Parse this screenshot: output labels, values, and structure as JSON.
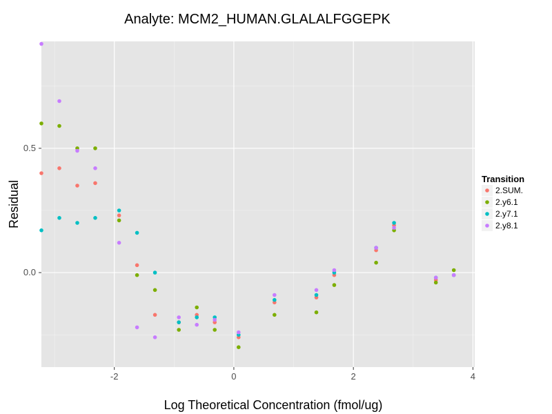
{
  "chart_data": {
    "type": "scatter",
    "title": "Analyte: MCM2_HUMAN.GLALALFGGEPK",
    "xlabel": "Log Theoretical Concentration (fmol/ug)",
    "ylabel": "Residual",
    "xlim": [
      -3.22,
      4.03
    ],
    "ylim": [
      -0.38,
      0.93
    ],
    "xticks": [
      -2,
      0,
      2,
      4
    ],
    "yticks": [
      0.0,
      0.5
    ],
    "xtick_labels": [
      "-2",
      "0",
      "2",
      "4"
    ],
    "ytick_labels": [
      "0.0",
      "0.5"
    ],
    "grid": true,
    "legend": {
      "title": "Transition",
      "position": "right",
      "entries": [
        "2.SUM.",
        "2.y6.1",
        "2.y7.1",
        "2.y8.1"
      ]
    },
    "series": [
      {
        "name": "2.SUM.",
        "color": "#F8766D",
        "points": [
          [
            -3.22,
            0.4
          ],
          [
            -2.92,
            0.42
          ],
          [
            -2.62,
            0.35
          ],
          [
            -2.32,
            0.36
          ],
          [
            -1.92,
            0.23
          ],
          [
            -1.62,
            0.03
          ],
          [
            -1.32,
            -0.17
          ],
          [
            -0.92,
            -0.2
          ],
          [
            -0.62,
            -0.17
          ],
          [
            -0.32,
            -0.2
          ],
          [
            0.08,
            -0.26
          ],
          [
            0.68,
            -0.12
          ],
          [
            1.38,
            -0.1
          ],
          [
            1.68,
            -0.01
          ],
          [
            2.38,
            0.09
          ],
          [
            2.68,
            0.19
          ],
          [
            3.38,
            -0.03
          ],
          [
            3.68,
            -0.01
          ]
        ]
      },
      {
        "name": "2.y6.1",
        "color": "#7CAE00",
        "points": [
          [
            -3.22,
            0.6
          ],
          [
            -2.92,
            0.59
          ],
          [
            -2.62,
            0.5
          ],
          [
            -2.32,
            0.5
          ],
          [
            -1.92,
            0.21
          ],
          [
            -1.62,
            -0.01
          ],
          [
            -1.32,
            -0.07
          ],
          [
            -0.92,
            -0.23
          ],
          [
            -0.62,
            -0.14
          ],
          [
            -0.32,
            -0.23
          ],
          [
            0.08,
            -0.3
          ],
          [
            0.68,
            -0.17
          ],
          [
            1.38,
            -0.16
          ],
          [
            1.68,
            -0.05
          ],
          [
            2.38,
            0.04
          ],
          [
            2.68,
            0.17
          ],
          [
            3.38,
            -0.04
          ],
          [
            3.68,
            0.01
          ]
        ]
      },
      {
        "name": "2.y7.1",
        "color": "#00BFC4",
        "points": [
          [
            -3.22,
            0.17
          ],
          [
            -2.92,
            0.22
          ],
          [
            -2.62,
            0.2
          ],
          [
            -2.32,
            0.22
          ],
          [
            -1.92,
            0.25
          ],
          [
            -1.62,
            0.16
          ],
          [
            -1.32,
            0.0
          ],
          [
            -0.92,
            -0.2
          ],
          [
            -0.62,
            -0.18
          ],
          [
            -0.32,
            -0.18
          ],
          [
            0.08,
            -0.25
          ],
          [
            0.68,
            -0.11
          ],
          [
            1.38,
            -0.09
          ],
          [
            1.68,
            0.0
          ],
          [
            2.38,
            0.1
          ],
          [
            2.68,
            0.2
          ],
          [
            3.38,
            -0.02
          ],
          [
            3.68,
            -0.01
          ]
        ]
      },
      {
        "name": "2.y8.1",
        "color": "#C77CFF",
        "points": [
          [
            -3.22,
            0.92
          ],
          [
            -2.92,
            0.69
          ],
          [
            -2.62,
            0.49
          ],
          [
            -2.32,
            0.42
          ],
          [
            -1.92,
            0.12
          ],
          [
            -1.62,
            -0.22
          ],
          [
            -1.32,
            -0.26
          ],
          [
            -0.92,
            -0.18
          ],
          [
            -0.62,
            -0.21
          ],
          [
            -0.32,
            -0.19
          ],
          [
            0.08,
            -0.24
          ],
          [
            0.68,
            -0.09
          ],
          [
            1.38,
            -0.07
          ],
          [
            1.68,
            0.01
          ],
          [
            2.38,
            0.1
          ],
          [
            2.68,
            0.18
          ],
          [
            3.38,
            -0.02
          ],
          [
            3.68,
            -0.01
          ]
        ]
      }
    ]
  }
}
